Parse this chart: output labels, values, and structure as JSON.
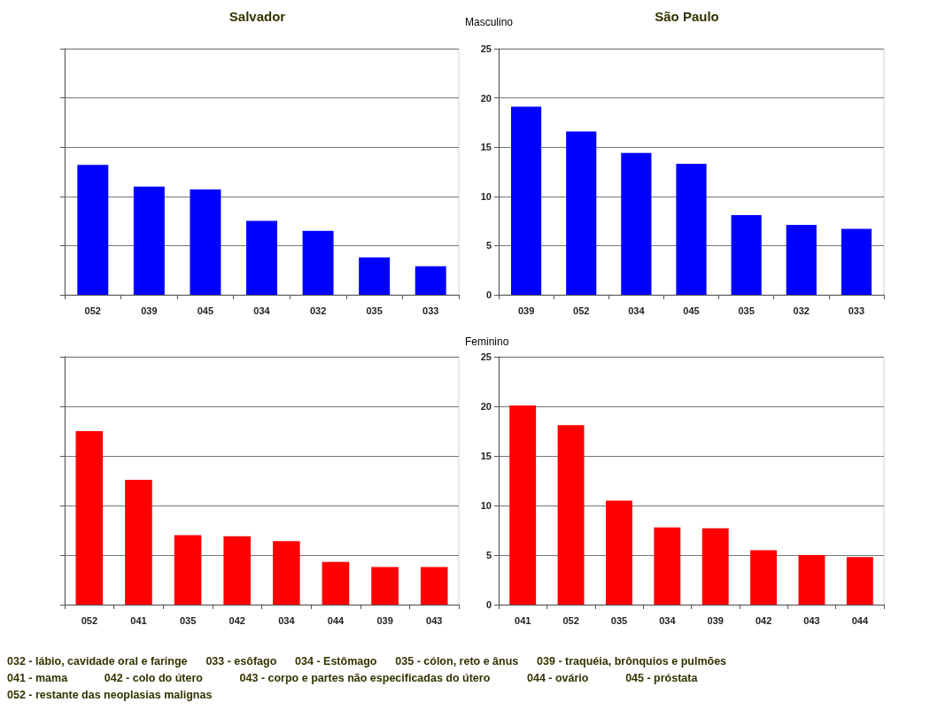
{
  "chart_data": [
    {
      "type": "bar",
      "title": "Salvador",
      "categories": [
        "052",
        "039",
        "045",
        "034",
        "032",
        "035",
        "033"
      ],
      "values": [
        13.2,
        11.0,
        10.7,
        7.5,
        6.5,
        3.8,
        2.9
      ],
      "color": "#0000ff",
      "ylim": [
        0,
        25
      ],
      "yticks": [
        0,
        5,
        10,
        15,
        20,
        25
      ],
      "grid": "y",
      "tick_labels": "x"
    },
    {
      "type": "bar",
      "title": "São Paulo",
      "subtitle": "Masculino",
      "categories": [
        "039",
        "052",
        "034",
        "045",
        "035",
        "032",
        "033"
      ],
      "values": [
        19.1,
        16.6,
        14.4,
        13.3,
        8.1,
        7.1,
        6.7
      ],
      "color": "#0000ff",
      "ylim": [
        0,
        25
      ],
      "yticks": [
        0,
        5,
        10,
        15,
        20,
        25
      ],
      "grid": "y"
    },
    {
      "type": "bar",
      "categories": [
        "052",
        "041",
        "035",
        "042",
        "034",
        "044",
        "039",
        "043"
      ],
      "values": [
        17.5,
        12.6,
        7.0,
        6.9,
        6.4,
        4.3,
        3.8,
        3.8
      ],
      "color": "#ff0000",
      "ylim": [
        0,
        25
      ],
      "yticks": [
        0,
        5,
        10,
        15,
        20,
        25
      ],
      "grid": "y",
      "tick_labels": "x"
    },
    {
      "type": "bar",
      "subtitle": "Feminino",
      "categories": [
        "041",
        "052",
        "035",
        "034",
        "039",
        "042",
        "043",
        "044"
      ],
      "values": [
        20.1,
        18.1,
        10.5,
        7.8,
        7.7,
        5.5,
        5.0,
        4.8
      ],
      "color": "#ff0000",
      "ylim": [
        0,
        25
      ],
      "yticks": [
        0,
        5,
        10,
        15,
        20,
        25
      ],
      "grid": "y",
      "annotations": [
        "032 - lábio, cavidade oral e faringe      033 - esôfago      034 - Estômago      035 - cólon, reto e ânus      039 - traquéia, brônquios e pulmões",
        "041 - mama            042 - colo do útero            043 - corpo e partes não especificadas do útero            044 - ovário            045 - próstata",
        "052 - restante das neoplasias malignas"
      ]
    }
  ]
}
